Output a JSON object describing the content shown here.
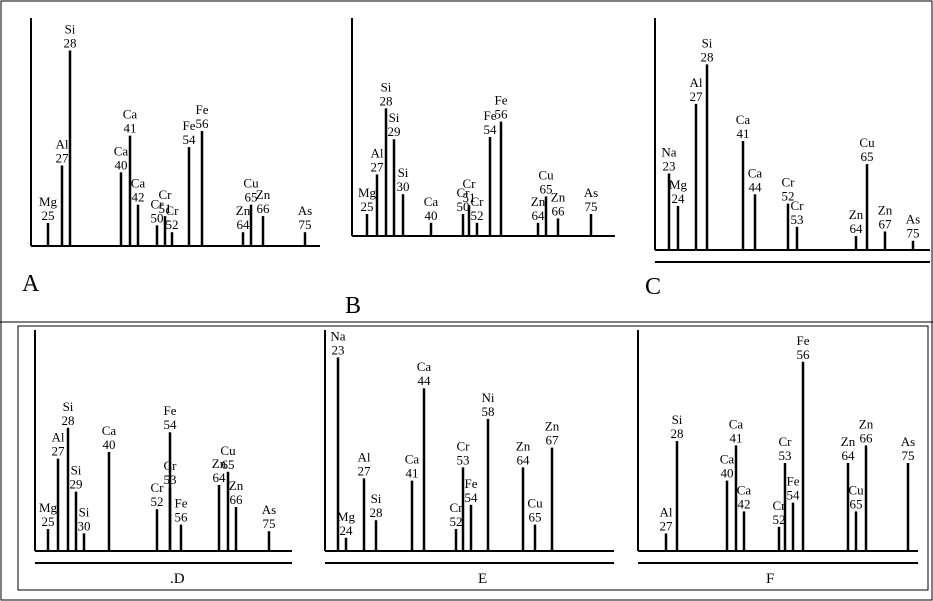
{
  "chart_data": [
    {
      "type": "bar",
      "panel": "A",
      "x": [
        "Mg 25",
        "Al 27",
        "Si 28",
        "Ca 40",
        "Ca 41",
        "Ca 42",
        "Cr 50",
        "Cr 51",
        "Cr 52",
        "Fe 54",
        "Fe 56",
        "Zn 64",
        "Cu 65",
        "Zn 66",
        "As 75"
      ],
      "peaks": [
        {
          "element": "Mg",
          "mass": "25",
          "height": 0.1
        },
        {
          "element": "Al",
          "mass": "27",
          "height": 0.35
        },
        {
          "element": "Si",
          "mass": "28",
          "height": 0.85
        },
        {
          "element": "Ca",
          "mass": "40",
          "height": 0.32
        },
        {
          "element": "Ca",
          "mass": "41",
          "height": 0.48
        },
        {
          "element": "Ca",
          "mass": "42",
          "height": 0.18
        },
        {
          "element": "Cr",
          "mass": "50",
          "height": 0.09
        },
        {
          "element": "Cr",
          "mass": "51",
          "height": 0.13
        },
        {
          "element": "Cr",
          "mass": "52",
          "height": 0.06
        },
        {
          "element": "Fe",
          "mass": "54",
          "height": 0.43
        },
        {
          "element": "Fe",
          "mass": "56",
          "height": 0.5
        },
        {
          "element": "Zn",
          "mass": "64",
          "height": 0.06
        },
        {
          "element": "Cu",
          "mass": "65",
          "height": 0.18
        },
        {
          "element": "Zn",
          "mass": "66",
          "height": 0.13
        },
        {
          "element": "As",
          "mass": "75",
          "height": 0.06
        }
      ]
    },
    {
      "type": "bar",
      "panel": "B",
      "x": [
        "Mg 25",
        "Al 27",
        "Si 28",
        "Si 29",
        "Si 30",
        "Ca 40",
        "Cr 50",
        "Cr 51",
        "Cr 52",
        "Fe 54",
        "Fe 56",
        "Zn 64",
        "Cu 65",
        "Zn 66",
        "As 75"
      ],
      "peaks": [
        {
          "element": "Mg",
          "mass": "25",
          "height": 0.1
        },
        {
          "element": "Al",
          "mass": "27",
          "height": 0.28
        },
        {
          "element": "Si",
          "mass": "28",
          "height": 0.58
        },
        {
          "element": "Si",
          "mass": "29",
          "height": 0.44
        },
        {
          "element": "Si",
          "mass": "30",
          "height": 0.19
        },
        {
          "element": "Ca",
          "mass": "40",
          "height": 0.06
        },
        {
          "element": "Cr",
          "mass": "50",
          "height": 0.1
        },
        {
          "element": "Cr",
          "mass": "51",
          "height": 0.14
        },
        {
          "element": "Cr",
          "mass": "52",
          "height": 0.06
        },
        {
          "element": "Fe",
          "mass": "54",
          "height": 0.45
        },
        {
          "element": "Fe",
          "mass": "56",
          "height": 0.52
        },
        {
          "element": "Zn",
          "mass": "64",
          "height": 0.06
        },
        {
          "element": "Cu",
          "mass": "65",
          "height": 0.18
        },
        {
          "element": "Zn",
          "mass": "66",
          "height": 0.08
        },
        {
          "element": "As",
          "mass": "75",
          "height": 0.1
        }
      ]
    },
    {
      "type": "bar",
      "panel": "C",
      "x": [
        "Na 23",
        "Mg 24",
        "Al 27",
        "Si 28",
        "Ca 41",
        "Ca 44",
        "Cr 52",
        "Cr 53",
        "Zn 64",
        "Cu 65",
        "Zn 67",
        "As 75"
      ],
      "peaks": [
        {
          "element": "Na",
          "mass": "23",
          "height": 0.33
        },
        {
          "element": "Mg",
          "mass": "24",
          "height": 0.19
        },
        {
          "element": "Al",
          "mass": "27",
          "height": 0.63
        },
        {
          "element": "Si",
          "mass": "28",
          "height": 0.8
        },
        {
          "element": "Ca",
          "mass": "41",
          "height": 0.47
        },
        {
          "element": "Ca",
          "mass": "44",
          "height": 0.24
        },
        {
          "element": "Cr",
          "mass": "52",
          "height": 0.2
        },
        {
          "element": "Cr",
          "mass": "53",
          "height": 0.1
        },
        {
          "element": "Zn",
          "mass": "64",
          "height": 0.06
        },
        {
          "element": "Cu",
          "mass": "65",
          "height": 0.37
        },
        {
          "element": "Zn",
          "mass": "67",
          "height": 0.08
        },
        {
          "element": "As",
          "mass": "75",
          "height": 0.04
        }
      ]
    },
    {
      "type": "bar",
      "panel": ".D",
      "x": [
        "Mg 25",
        "Al 27",
        "Si 28",
        "Si 29",
        "Si 30",
        "Ca 40",
        "Cr 52",
        "Cr 53",
        "Fe 54",
        "Fe 56",
        "Zn 64",
        "Cu 65",
        "Zn 66",
        "As 75"
      ],
      "peaks": [
        {
          "element": "Mg",
          "mass": "25",
          "height": 0.1
        },
        {
          "element": "Al",
          "mass": "27",
          "height": 0.42
        },
        {
          "element": "Si",
          "mass": "28",
          "height": 0.56
        },
        {
          "element": "Si",
          "mass": "29",
          "height": 0.27
        },
        {
          "element": "Si",
          "mass": "30",
          "height": 0.08
        },
        {
          "element": "Ca",
          "mass": "40",
          "height": 0.45
        },
        {
          "element": "Cr",
          "mass": "52",
          "height": 0.19
        },
        {
          "element": "Cr",
          "mass": "53",
          "height": 0.29
        },
        {
          "element": "Fe",
          "mass": "54",
          "height": 0.54
        },
        {
          "element": "Fe",
          "mass": "56",
          "height": 0.12
        },
        {
          "element": "Zn",
          "mass": "64",
          "height": 0.3
        },
        {
          "element": "Cu",
          "mass": "65",
          "height": 0.36
        },
        {
          "element": "Zn",
          "mass": "66",
          "height": 0.2
        },
        {
          "element": "As",
          "mass": "75",
          "height": 0.09
        }
      ]
    },
    {
      "type": "bar",
      "panel": "E",
      "x": [
        "Na 23",
        "Mg 24",
        "Al 27",
        "Si 28",
        "Ca 41",
        "Ca 44",
        "Cr 52",
        "Cr 53",
        "Fe 54",
        "Ni 58",
        "Zn 64",
        "Cu 65",
        "Zn 67"
      ],
      "peaks": [
        {
          "element": "Na",
          "mass": "23",
          "height": 0.88
        },
        {
          "element": "Mg",
          "mass": "24",
          "height": 0.06
        },
        {
          "element": "Al",
          "mass": "27",
          "height": 0.33
        },
        {
          "element": "Si",
          "mass": "28",
          "height": 0.14
        },
        {
          "element": "Ca",
          "mass": "41",
          "height": 0.32
        },
        {
          "element": "Ca",
          "mass": "44",
          "height": 0.74
        },
        {
          "element": "Cr",
          "mass": "52",
          "height": 0.1
        },
        {
          "element": "Cr",
          "mass": "53",
          "height": 0.38
        },
        {
          "element": "Fe",
          "mass": "54",
          "height": 0.21
        },
        {
          "element": "Ni",
          "mass": "58",
          "height": 0.6
        },
        {
          "element": "Zn",
          "mass": "64",
          "height": 0.38
        },
        {
          "element": "Cu",
          "mass": "65",
          "height": 0.12
        },
        {
          "element": "Zn",
          "mass": "67",
          "height": 0.47
        }
      ]
    },
    {
      "type": "bar",
      "panel": "F",
      "x": [
        "Al 27",
        "Si 28",
        "Ca 40",
        "Ca 41",
        "Ca 42",
        "Cr 52",
        "Cr 53",
        "Fe 54",
        "Fe 56",
        "Zn 64",
        "Cu 65",
        "Zn 66",
        "As 75"
      ],
      "peaks": [
        {
          "element": "Al",
          "mass": "27",
          "height": 0.08
        },
        {
          "element": "Si",
          "mass": "28",
          "height": 0.5
        },
        {
          "element": "Ca",
          "mass": "40",
          "height": 0.32
        },
        {
          "element": "Ca",
          "mass": "41",
          "height": 0.48
        },
        {
          "element": "Ca",
          "mass": "42",
          "height": 0.18
        },
        {
          "element": "Cr",
          "mass": "52",
          "height": 0.11
        },
        {
          "element": "Cr",
          "mass": "53",
          "height": 0.4
        },
        {
          "element": "Fe",
          "mass": "54",
          "height": 0.22
        },
        {
          "element": "Fe",
          "mass": "56",
          "height": 0.86
        },
        {
          "element": "Zn",
          "mass": "64",
          "height": 0.4
        },
        {
          "element": "Cu",
          "mass": "65",
          "height": 0.18
        },
        {
          "element": "Zn",
          "mass": "66",
          "height": 0.48
        },
        {
          "element": "As",
          "mass": "75",
          "height": 0.4
        }
      ]
    }
  ]
}
